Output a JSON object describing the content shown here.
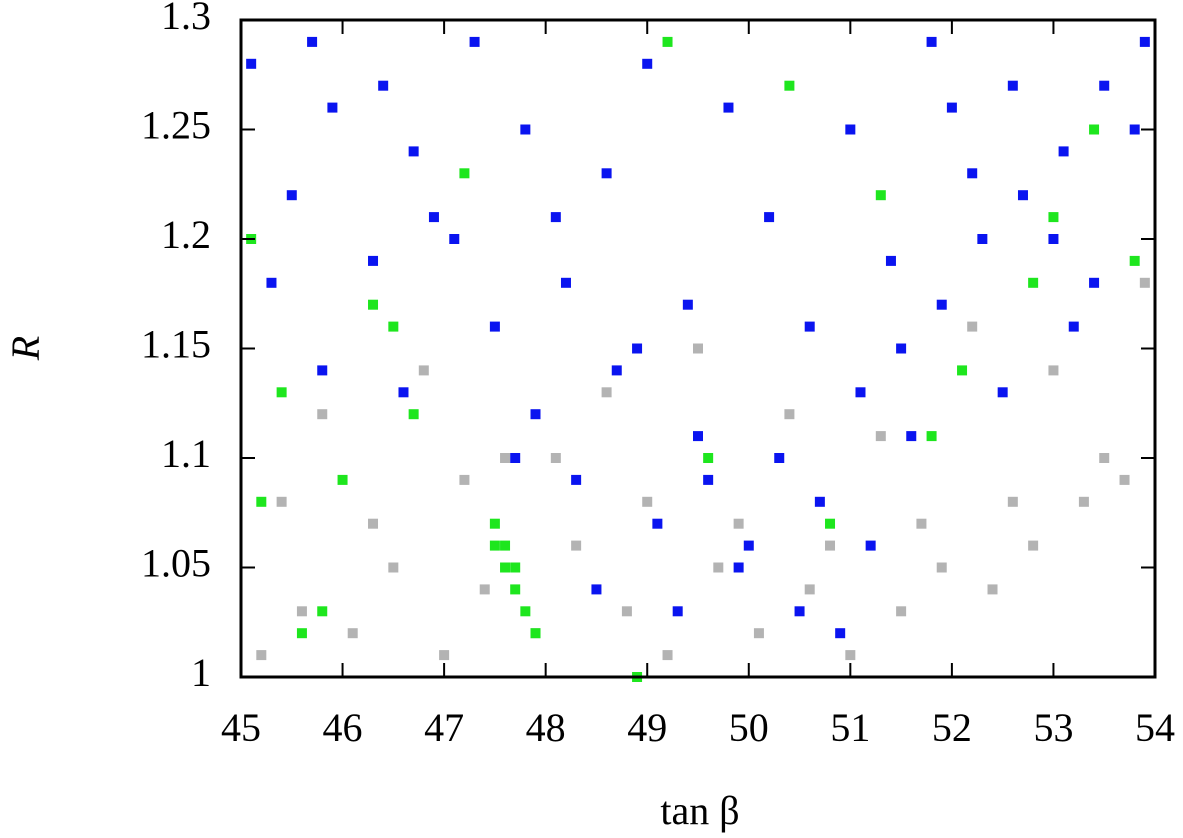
{
  "chart_data": {
    "type": "scatter",
    "xlabel": "tan β",
    "ylabel": "R",
    "xlim": [
      45,
      54
    ],
    "xticks": [
      45,
      46,
      47,
      48,
      49,
      50,
      51,
      52,
      53,
      54
    ],
    "ylim": [
      1,
      1.3
    ],
    "yticks": [
      1,
      1.05,
      1.1,
      1.15,
      1.2,
      1.25,
      1.3
    ],
    "grid": false,
    "series": [
      {
        "color": "#b3b3b3",
        "x": [
          45.2,
          45.6,
          46.1,
          46.5,
          47.0,
          47.4,
          47.9,
          48.3,
          48.8,
          49.2,
          49.7,
          50.1,
          50.6,
          51.0,
          51.5,
          51.9,
          52.4,
          52.8,
          53.3,
          53.7,
          45.4,
          46.3,
          47.2,
          48.1,
          49.0,
          49.9,
          50.8,
          51.7,
          52.6,
          53.5,
          45.8,
          46.8,
          47.6,
          48.6,
          49.5,
          50.4,
          51.3,
          52.2,
          53.0,
          53.9
        ],
        "values": [
          1.01,
          1.03,
          1.02,
          1.05,
          1.01,
          1.04,
          1.02,
          1.06,
          1.03,
          1.01,
          1.05,
          1.02,
          1.04,
          1.01,
          1.03,
          1.05,
          1.04,
          1.06,
          1.08,
          1.09,
          1.08,
          1.07,
          1.09,
          1.1,
          1.08,
          1.07,
          1.06,
          1.07,
          1.08,
          1.1,
          1.12,
          1.14,
          1.1,
          1.13,
          1.15,
          1.12,
          1.11,
          1.16,
          1.14,
          1.18
        ]
      },
      {
        "color": "#0a14f0",
        "x": [
          45.1,
          45.5,
          45.9,
          46.3,
          46.7,
          47.1,
          47.5,
          47.9,
          48.3,
          48.7,
          49.1,
          49.5,
          49.9,
          50.3,
          50.7,
          51.1,
          51.5,
          51.9,
          52.3,
          52.7,
          53.1,
          53.5,
          53.9,
          45.3,
          45.8,
          46.4,
          46.9,
          47.3,
          47.8,
          48.2,
          48.6,
          49.0,
          49.4,
          49.8,
          50.2,
          50.6,
          51.0,
          51.4,
          51.8,
          52.2,
          52.6,
          53.0,
          53.4,
          53.8,
          45.7,
          46.6,
          47.7,
          48.5,
          49.3,
          50.0,
          50.9,
          51.6,
          52.5,
          53.2,
          48.1,
          48.9,
          49.6,
          50.5,
          51.2,
          52.0
        ],
        "values": [
          1.28,
          1.22,
          1.26,
          1.19,
          1.24,
          1.2,
          1.16,
          1.12,
          1.09,
          1.14,
          1.07,
          1.11,
          1.05,
          1.1,
          1.08,
          1.13,
          1.15,
          1.17,
          1.2,
          1.22,
          1.24,
          1.27,
          1.29,
          1.18,
          1.14,
          1.27,
          1.21,
          1.29,
          1.25,
          1.18,
          1.23,
          1.28,
          1.17,
          1.26,
          1.21,
          1.16,
          1.25,
          1.19,
          1.29,
          1.23,
          1.27,
          1.2,
          1.18,
          1.25,
          1.29,
          1.13,
          1.1,
          1.04,
          1.03,
          1.06,
          1.02,
          1.11,
          1.13,
          1.16,
          1.21,
          1.15,
          1.09,
          1.03,
          1.06,
          1.26
        ]
      },
      {
        "color": "#1ee61e",
        "x": [
          47.5,
          47.6,
          47.6,
          47.7,
          47.8,
          47.7,
          47.9,
          47.5,
          45.2,
          45.6,
          46.0,
          45.4,
          46.3,
          45.1,
          46.7,
          47.2,
          48.9,
          49.6,
          50.4,
          51.3,
          52.1,
          52.8,
          53.4,
          45.8,
          46.5,
          49.2,
          50.8,
          51.8,
          53.0,
          53.8
        ],
        "values": [
          1.07,
          1.06,
          1.05,
          1.04,
          1.03,
          1.05,
          1.02,
          1.06,
          1.08,
          1.02,
          1.09,
          1.13,
          1.17,
          1.2,
          1.12,
          1.23,
          1.0,
          1.1,
          1.27,
          1.22,
          1.14,
          1.18,
          1.25,
          1.03,
          1.16,
          1.29,
          1.07,
          1.11,
          1.21,
          1.19
        ]
      }
    ]
  }
}
